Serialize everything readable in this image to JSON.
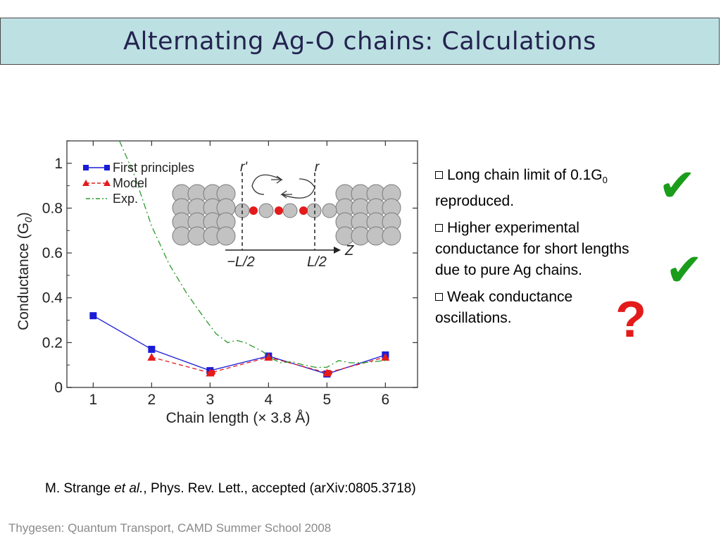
{
  "slide": {
    "title": "Alternating Ag-O chains: Calculations",
    "bullets": [
      {
        "text": "Long chain limit of 0.1G",
        "sub": "0",
        "tail": "",
        "line2": "reproduced.",
        "mark": "check",
        "mark_glyph": "✔"
      },
      {
        "text": "Higher experimental",
        "line2": "conductance for short lengths",
        "line3": "due to pure Ag chains.",
        "mark": "check",
        "mark_glyph": "✔"
      },
      {
        "text": "Weak conductance",
        "line2": "oscillations.",
        "mark": "question",
        "mark_glyph": "?"
      }
    ],
    "citation": {
      "author": "M. Strange ",
      "etal": "et al.",
      "rest": ", Phys. Rev. Lett., accepted (arXiv:0805.3718)"
    },
    "footer": "Thygesen: Quantum Transport, CAMD Summer School 2008",
    "colors": {
      "title_bg": "#bde0e3",
      "title_text": "#23234f",
      "check": "#1a9d1a",
      "question": "#e41b1b"
    }
  },
  "chart_data": {
    "type": "line",
    "xlabel": "Chain length (× 3.8 Å)",
    "ylabel": "Conductance (G0)",
    "ylabel_main": "Conductance (G",
    "ylabel_sub": "0",
    "ylabel_tail": ")",
    "xlim": [
      0.55,
      6.55
    ],
    "ylim": [
      0,
      1.1
    ],
    "xticks": [
      1,
      2,
      3,
      4,
      5,
      6
    ],
    "yticks": [
      0,
      0.2,
      0.4,
      0.6,
      0.8,
      1
    ],
    "ytick_labels": [
      "0",
      "0.2",
      "0.4",
      "0.6",
      "0.8",
      "1"
    ],
    "legend_position": "top-left",
    "series": [
      {
        "name": "First principles",
        "x": [
          1,
          2,
          3,
          4,
          5,
          6
        ],
        "values": [
          0.32,
          0.17,
          0.075,
          0.14,
          0.06,
          0.145
        ],
        "color": "#1b1bd8",
        "marker": "square",
        "style": "solid"
      },
      {
        "name": "Model",
        "x": [
          2,
          3,
          4,
          5,
          6
        ],
        "values": [
          0.135,
          0.065,
          0.135,
          0.065,
          0.135
        ],
        "color": "#e41b1b",
        "marker": "triangle",
        "style": "dashed"
      },
      {
        "name": "Exp.",
        "x": [
          1.45,
          1.7,
          2.0,
          2.3,
          2.6,
          2.9,
          3.1,
          3.3,
          3.45,
          3.6,
          3.75,
          3.9,
          4.05,
          4.2,
          4.4,
          4.6,
          4.8,
          5.0,
          5.2,
          5.4,
          5.6,
          6.0
        ],
        "values": [
          1.1,
          0.95,
          0.72,
          0.55,
          0.42,
          0.31,
          0.24,
          0.2,
          0.21,
          0.2,
          0.18,
          0.16,
          0.13,
          0.11,
          0.115,
          0.1,
          0.09,
          0.09,
          0.12,
          0.11,
          0.11,
          0.12
        ],
        "color": "#2b9a2b",
        "marker": "none",
        "style": "dashdot"
      }
    ],
    "inset": {
      "labels": {
        "r_prime": "r'",
        "r": "r",
        "left": "−L/2",
        "right": "L/2",
        "axis": "Z"
      }
    }
  }
}
